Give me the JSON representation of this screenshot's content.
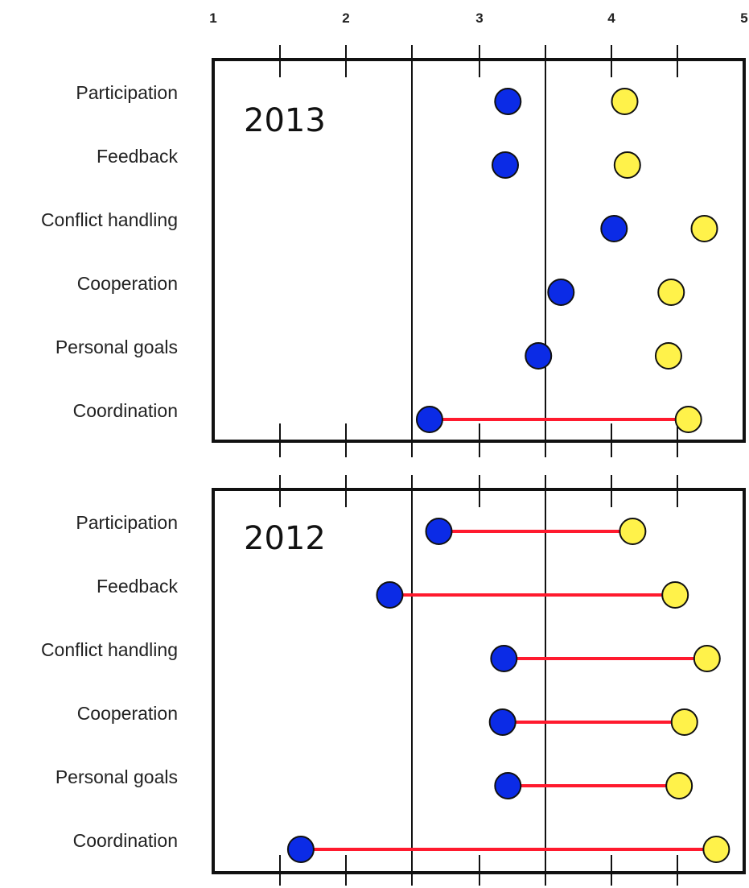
{
  "chart_data": {
    "type": "scatter",
    "x_ticks": [
      "1",
      "2",
      "3",
      "4",
      "5"
    ],
    "xlim": [
      1,
      5
    ],
    "grid": false,
    "legend": "none",
    "categories": [
      "Participation",
      "Feedback",
      "Conflict handling",
      "Cooperation",
      "Personal goals",
      "Coordination"
    ],
    "colors": {
      "blue": "#0b2be6",
      "yellow": "#fff24a",
      "arrow": "#ff1a2e",
      "outline": "#111111"
    },
    "panels": [
      {
        "title": "2013",
        "points": [
          {
            "category": "Participation",
            "blue": 3.22,
            "yellow": 4.1,
            "arrow": false
          },
          {
            "category": "Feedback",
            "blue": 3.2,
            "yellow": 4.12,
            "arrow": false
          },
          {
            "category": "Conflict handling",
            "blue": 4.02,
            "yellow": 4.7,
            "arrow": false
          },
          {
            "category": "Cooperation",
            "blue": 3.62,
            "yellow": 4.45,
            "arrow": false
          },
          {
            "category": "Personal goals",
            "blue": 3.45,
            "yellow": 4.43,
            "arrow": false
          },
          {
            "category": "Coordination",
            "blue": 2.63,
            "yellow": 4.58,
            "arrow": true
          }
        ]
      },
      {
        "title": "2012",
        "points": [
          {
            "category": "Participation",
            "blue": 2.7,
            "yellow": 4.16,
            "arrow": true
          },
          {
            "category": "Feedback",
            "blue": 2.33,
            "yellow": 4.48,
            "arrow": true
          },
          {
            "category": "Conflict handling",
            "blue": 3.19,
            "yellow": 4.72,
            "arrow": true
          },
          {
            "category": "Cooperation",
            "blue": 3.18,
            "yellow": 4.55,
            "arrow": true
          },
          {
            "category": "Personal goals",
            "blue": 3.22,
            "yellow": 4.51,
            "arrow": true
          },
          {
            "category": "Coordination",
            "blue": 1.66,
            "yellow": 4.79,
            "arrow": true
          }
        ]
      }
    ]
  }
}
